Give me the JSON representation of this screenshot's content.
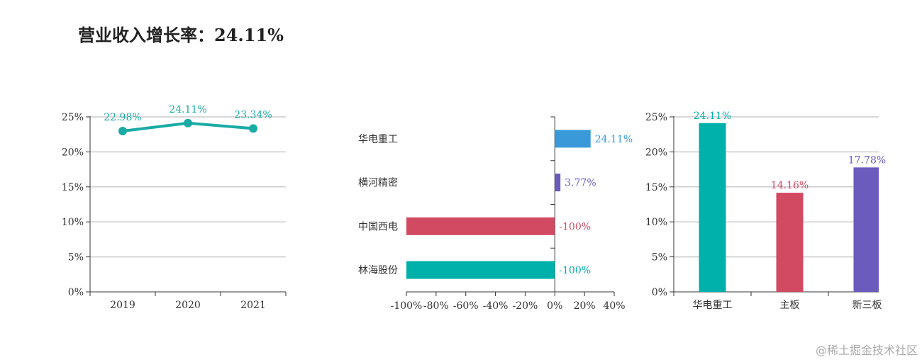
{
  "title": "营业收入增长率：24.11%",
  "watermark": "@稀土掘金技术社区",
  "chart_data": [
    {
      "type": "line",
      "x": [
        "2019",
        "2020",
        "2021"
      ],
      "series": [
        {
          "values": [
            22.98,
            24.11,
            23.34
          ],
          "labels": [
            "22.98%",
            "24.11%",
            "23.34%"
          ],
          "color": "#1aaba5"
        }
      ],
      "ylim": [
        0,
        25
      ],
      "yticks": [
        0,
        5,
        10,
        15,
        20,
        25
      ],
      "ytick_labels": [
        "0%",
        "5%",
        "10%",
        "15%",
        "20%",
        "25%"
      ],
      "grid": true
    },
    {
      "type": "bar",
      "orientation": "horizontal",
      "categories": [
        "华电重工",
        "横河精密",
        "中国西电",
        "林海股份"
      ],
      "values": [
        24.11,
        3.77,
        -100,
        -100
      ],
      "labels": [
        "24.11%",
        "3.77%",
        "-100%",
        "-100%"
      ],
      "colors": [
        "#3a9ad9",
        "#6a5bbd",
        "#d14a61",
        "#00b0aa"
      ],
      "xlim": [
        -100,
        40
      ],
      "xticks": [
        -100,
        -80,
        -60,
        -40,
        -20,
        0,
        20,
        40
      ],
      "xtick_labels": [
        "-100%",
        "-80%",
        "-60%",
        "-40%",
        "-20%",
        "0%",
        "20%",
        "40%"
      ],
      "grid": false
    },
    {
      "type": "bar",
      "categories": [
        "华电重工",
        "主板",
        "新三板"
      ],
      "values": [
        24.11,
        14.16,
        17.78
      ],
      "labels": [
        "24.11%",
        "14.16%",
        "17.78%"
      ],
      "colors": [
        "#00b0aa",
        "#d14a61",
        "#6a5bbd"
      ],
      "ylim": [
        0,
        25
      ],
      "yticks": [
        0,
        5,
        10,
        15,
        20,
        25
      ],
      "ytick_labels": [
        "0%",
        "5%",
        "10%",
        "15%",
        "20%",
        "25%"
      ],
      "grid": true
    }
  ]
}
